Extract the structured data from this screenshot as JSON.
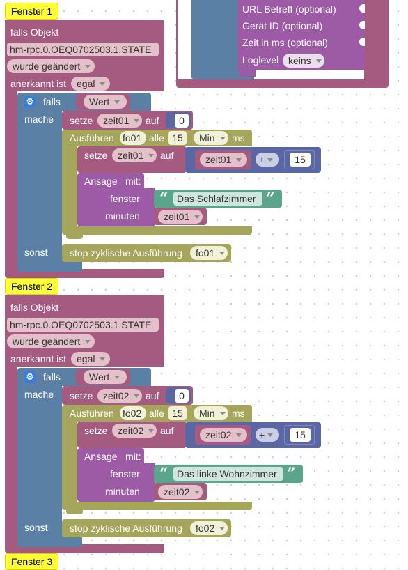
{
  "colors": {
    "event_block": "#a55b80",
    "if_block": "#5b80a5",
    "var_block": "#a55b80",
    "timer_block": "#a5a55b",
    "math_block": "#5b67a5",
    "text_block": "#5ba58c",
    "speech_block": "#9d5ba5",
    "label": "#ffff38"
  },
  "top_block": {
    "params": [
      "URL Betreff (optional)",
      "Gerät ID (optional)",
      "Zeit in ms (optional)"
    ],
    "loglevel_label": "Loglevel",
    "loglevel_value": "keins"
  },
  "groups": [
    {
      "label": "Fenster 1",
      "falls_objekt": "falls Objekt",
      "object_id": "hm-rpc.0.OEQ0702503.1.STATE",
      "trigger": "wurde geändert",
      "ack_label": "anerkannt ist",
      "ack_value": "egal",
      "if_label": "falls",
      "if_value": "Wert",
      "do_label": "mache",
      "set_label": "setze",
      "var": "zeit01",
      "to_label": "auf",
      "init_value": "0",
      "exec_label": "Ausführen",
      "timer": "fo01",
      "every_label": "alle",
      "interval": "15",
      "unit": "Min",
      "ms_label": "ms",
      "math_op": "+",
      "increment": "15",
      "speech_label": "Ansage",
      "with_label": "mit:",
      "window_label": "fenster",
      "window_text": "Das Schlafzimmer",
      "minutes_label": "minuten",
      "else_label": "sonst",
      "stop_label": "stop zyklische Ausführung"
    },
    {
      "label": "Fenster 2",
      "falls_objekt": "falls Objekt",
      "object_id": "hm-rpc.0.OEQ0702503.1.STATE",
      "trigger": "wurde geändert",
      "ack_label": "anerkannt ist",
      "ack_value": "egal",
      "if_label": "falls",
      "if_value": "Wert",
      "do_label": "mache",
      "set_label": "setze",
      "var": "zeit02",
      "to_label": "auf",
      "init_value": "0",
      "exec_label": "Ausführen",
      "timer": "fo02",
      "every_label": "alle",
      "interval": "15",
      "unit": "Min",
      "ms_label": "ms",
      "math_op": "+",
      "increment": "15",
      "speech_label": "Ansage",
      "with_label": "mit:",
      "window_label": "fenster",
      "window_text": "Das linke Wohnzimmer",
      "minutes_label": "minuten",
      "else_label": "sonst",
      "stop_label": "stop zyklische Ausführung"
    }
  ],
  "next_label": "Fenster 3"
}
